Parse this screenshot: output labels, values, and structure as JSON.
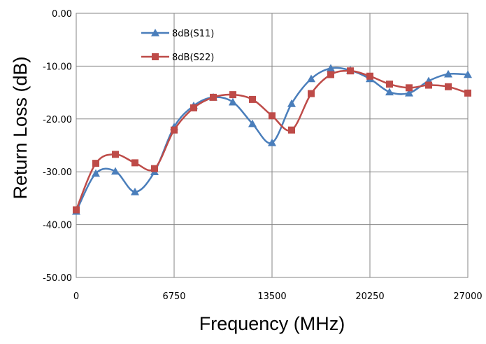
{
  "chart_data": {
    "type": "line",
    "title": "",
    "xlabel": "Frequency (MHz)",
    "ylabel": "Return Loss (dB)",
    "xlim": [
      0,
      27000
    ],
    "ylim": [
      -50,
      0
    ],
    "x_ticks": [
      "0",
      "6750",
      "13500",
      "20250",
      "27000"
    ],
    "y_ticks": [
      "0.00",
      "-10.00",
      "-20.00",
      "-30.00",
      "-40.00",
      "-50.00"
    ],
    "x_tick_values": [
      0,
      6750,
      13500,
      20250,
      27000
    ],
    "y_tick_values": [
      0,
      -10,
      -20,
      -30,
      -40,
      -50
    ],
    "grid": true,
    "legend_position": "top-left",
    "series": [
      {
        "name": "8dB(S11)",
        "color": "#4A7EBB",
        "marker": "triangle",
        "x": [
          0,
          1350,
          2700,
          4050,
          5400,
          6750,
          8100,
          9450,
          10800,
          12150,
          13500,
          14850,
          16200,
          17550,
          18900,
          20250,
          21600,
          22950,
          24300,
          25650,
          27000
        ],
        "y": [
          -37.5,
          -30.3,
          -29.9,
          -33.8,
          -30.0,
          -21.5,
          -17.5,
          -15.9,
          -16.8,
          -20.9,
          -24.5,
          -17.1,
          -12.4,
          -10.4,
          -10.8,
          -12.4,
          -14.9,
          -15.1,
          -12.8,
          -11.5,
          -11.6
        ]
      },
      {
        "name": "8dB(S22)",
        "color": "#BE4B48",
        "marker": "square",
        "x": [
          0,
          1350,
          2700,
          4050,
          5400,
          6750,
          8100,
          9450,
          10800,
          12150,
          13500,
          14850,
          16200,
          17550,
          18900,
          20250,
          21600,
          22950,
          24300,
          25650,
          27000
        ],
        "y": [
          -37.2,
          -28.4,
          -26.7,
          -28.3,
          -29.4,
          -22.1,
          -17.9,
          -15.9,
          -15.4,
          -16.3,
          -19.4,
          -22.1,
          -15.2,
          -11.6,
          -10.9,
          -11.9,
          -13.4,
          -14.1,
          -13.6,
          -13.9,
          -15.1
        ]
      }
    ]
  }
}
